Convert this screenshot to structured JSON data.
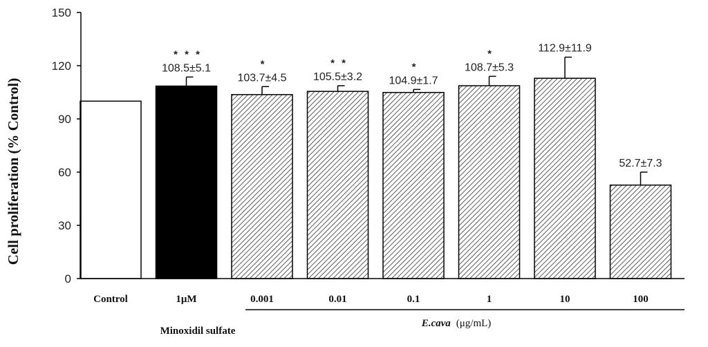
{
  "chart_data": {
    "type": "bar",
    "ylabel": "Cell proliferation (% Control)",
    "ylim": [
      0,
      150
    ],
    "yticks": [
      "0",
      "30",
      "60",
      "90",
      "120",
      "150"
    ],
    "categories": [
      "Control",
      "1μM",
      "0.001",
      "0.01",
      "0.1",
      "1",
      "10",
      "100"
    ],
    "values": [
      100,
      108.5,
      103.7,
      105.5,
      104.9,
      108.7,
      112.9,
      52.7
    ],
    "errors": [
      0,
      5.1,
      4.5,
      3.2,
      1.7,
      5.3,
      11.9,
      7.3
    ],
    "value_labels": [
      "",
      "108.5±5.1",
      "103.7±4.5",
      "105.5±3.2",
      "104.9±1.7",
      "108.7±5.3",
      "112.9±11.9",
      "52.7±7.3"
    ],
    "significance": [
      "",
      "* * *",
      "*",
      "* *",
      "*",
      "*",
      "",
      ""
    ],
    "bar_styles": [
      "white",
      "black",
      "hatched",
      "hatched",
      "hatched",
      "hatched",
      "hatched",
      "hatched"
    ],
    "colors": {
      "axis": "#000000",
      "black_bar": "#000000",
      "white_bar": "#ffffff",
      "hatch": "#333333"
    },
    "groups": [
      {
        "label": "Minoxidil sulfate",
        "unit": ""
      },
      {
        "label": "E.cava",
        "unit": "(μg/mL)"
      }
    ]
  }
}
